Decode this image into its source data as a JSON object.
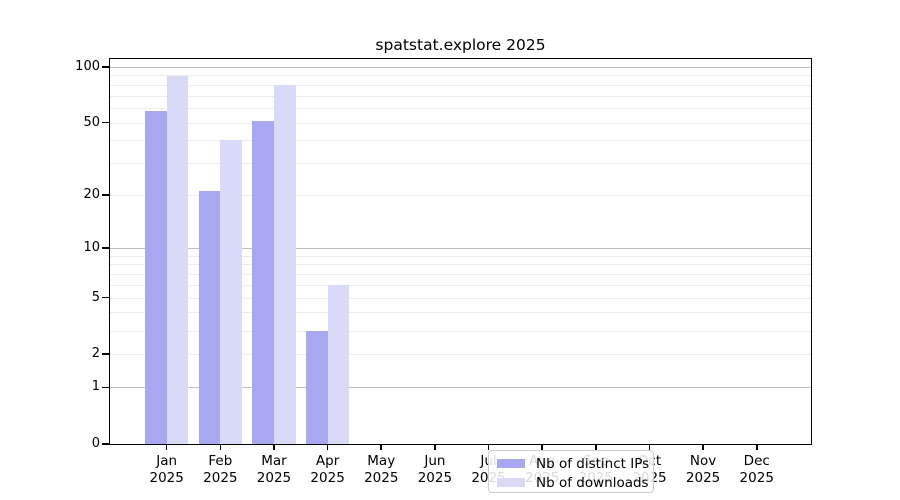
{
  "figure": {
    "title": "spatstat.explore 2025"
  },
  "chart_data": {
    "type": "bar",
    "title": "spatstat.explore 2025",
    "categories": [
      "Jan",
      "Feb",
      "Mar",
      "Apr",
      "May",
      "Jun",
      "Jul",
      "Aug",
      "Sep",
      "Oct",
      "Nov",
      "Dec"
    ],
    "x_year": "2025",
    "series": [
      {
        "name": "Nb of distinct IPs",
        "color": "#a8a8f0",
        "values": [
          58,
          21,
          51,
          3,
          null,
          null,
          null,
          null,
          null,
          null,
          null,
          null
        ]
      },
      {
        "name": "Nb of downloads",
        "color": "#d9d9f8",
        "values": [
          89,
          40,
          80,
          6,
          null,
          null,
          null,
          null,
          null,
          null,
          null,
          null
        ]
      }
    ],
    "y_scale": "log1p",
    "ylim": [
      0,
      110
    ],
    "y_ticks": [
      0,
      1,
      2,
      5,
      10,
      20,
      50,
      100
    ],
    "y_gridlines_major": [
      1,
      10,
      100
    ],
    "y_gridlines_minor": [
      2,
      3,
      4,
      5,
      6,
      7,
      8,
      9,
      20,
      30,
      40,
      50,
      60,
      70,
      80,
      90
    ],
    "grid": true,
    "legend_position": "lower-center",
    "colors": {
      "grid_major": "#bfbfbf",
      "grid_minor": "#ececec",
      "axis": "#000000",
      "background": "#ffffff"
    }
  }
}
